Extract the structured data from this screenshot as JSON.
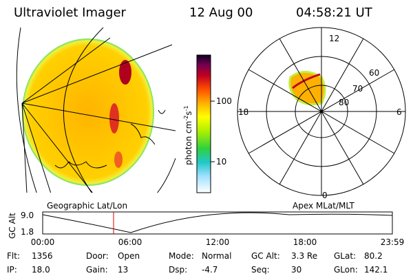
{
  "header": {
    "title": "Ultraviolet Imager",
    "date": "12 Aug 00",
    "time": "04:58:21 UT"
  },
  "left_panel": {
    "label": "Geographic Lat/Lon"
  },
  "colorbar": {
    "label_parts": [
      "photon cm",
      "-2",
      "s",
      "-1"
    ],
    "ticks": [
      "100",
      "10"
    ]
  },
  "polar_panel": {
    "label": "Apex MLat/MLT",
    "mlt_labels": [
      "12",
      "18",
      "6",
      "0"
    ],
    "lat_labels": [
      "60",
      "70",
      "80"
    ]
  },
  "altitude_strip": {
    "axis_label": "GC Alt",
    "yticks": [
      "9.0",
      "1.8"
    ],
    "xticks": [
      "00:00",
      "06:00",
      "12:00",
      "18:00",
      "23:59"
    ]
  },
  "info": {
    "rows": [
      [
        {
          "label": "Flt:",
          "value": "1356"
        },
        {
          "label": "Door:",
          "value": "Open"
        },
        {
          "label": "Mode:",
          "value": "Normal"
        },
        {
          "label": "GC Alt:",
          "value": "3.3 Re"
        },
        {
          "label": "GLat:",
          "value": "80.2"
        }
      ],
      [
        {
          "label": "IP:",
          "value": "18.0"
        },
        {
          "label": "Gain:",
          "value": "13"
        },
        {
          "label": "Dsp:",
          "value": "-4.7"
        },
        {
          "label": "Seq:",
          "value": "30"
        },
        {
          "label": "GLon:",
          "value": "142.1"
        }
      ]
    ]
  }
}
